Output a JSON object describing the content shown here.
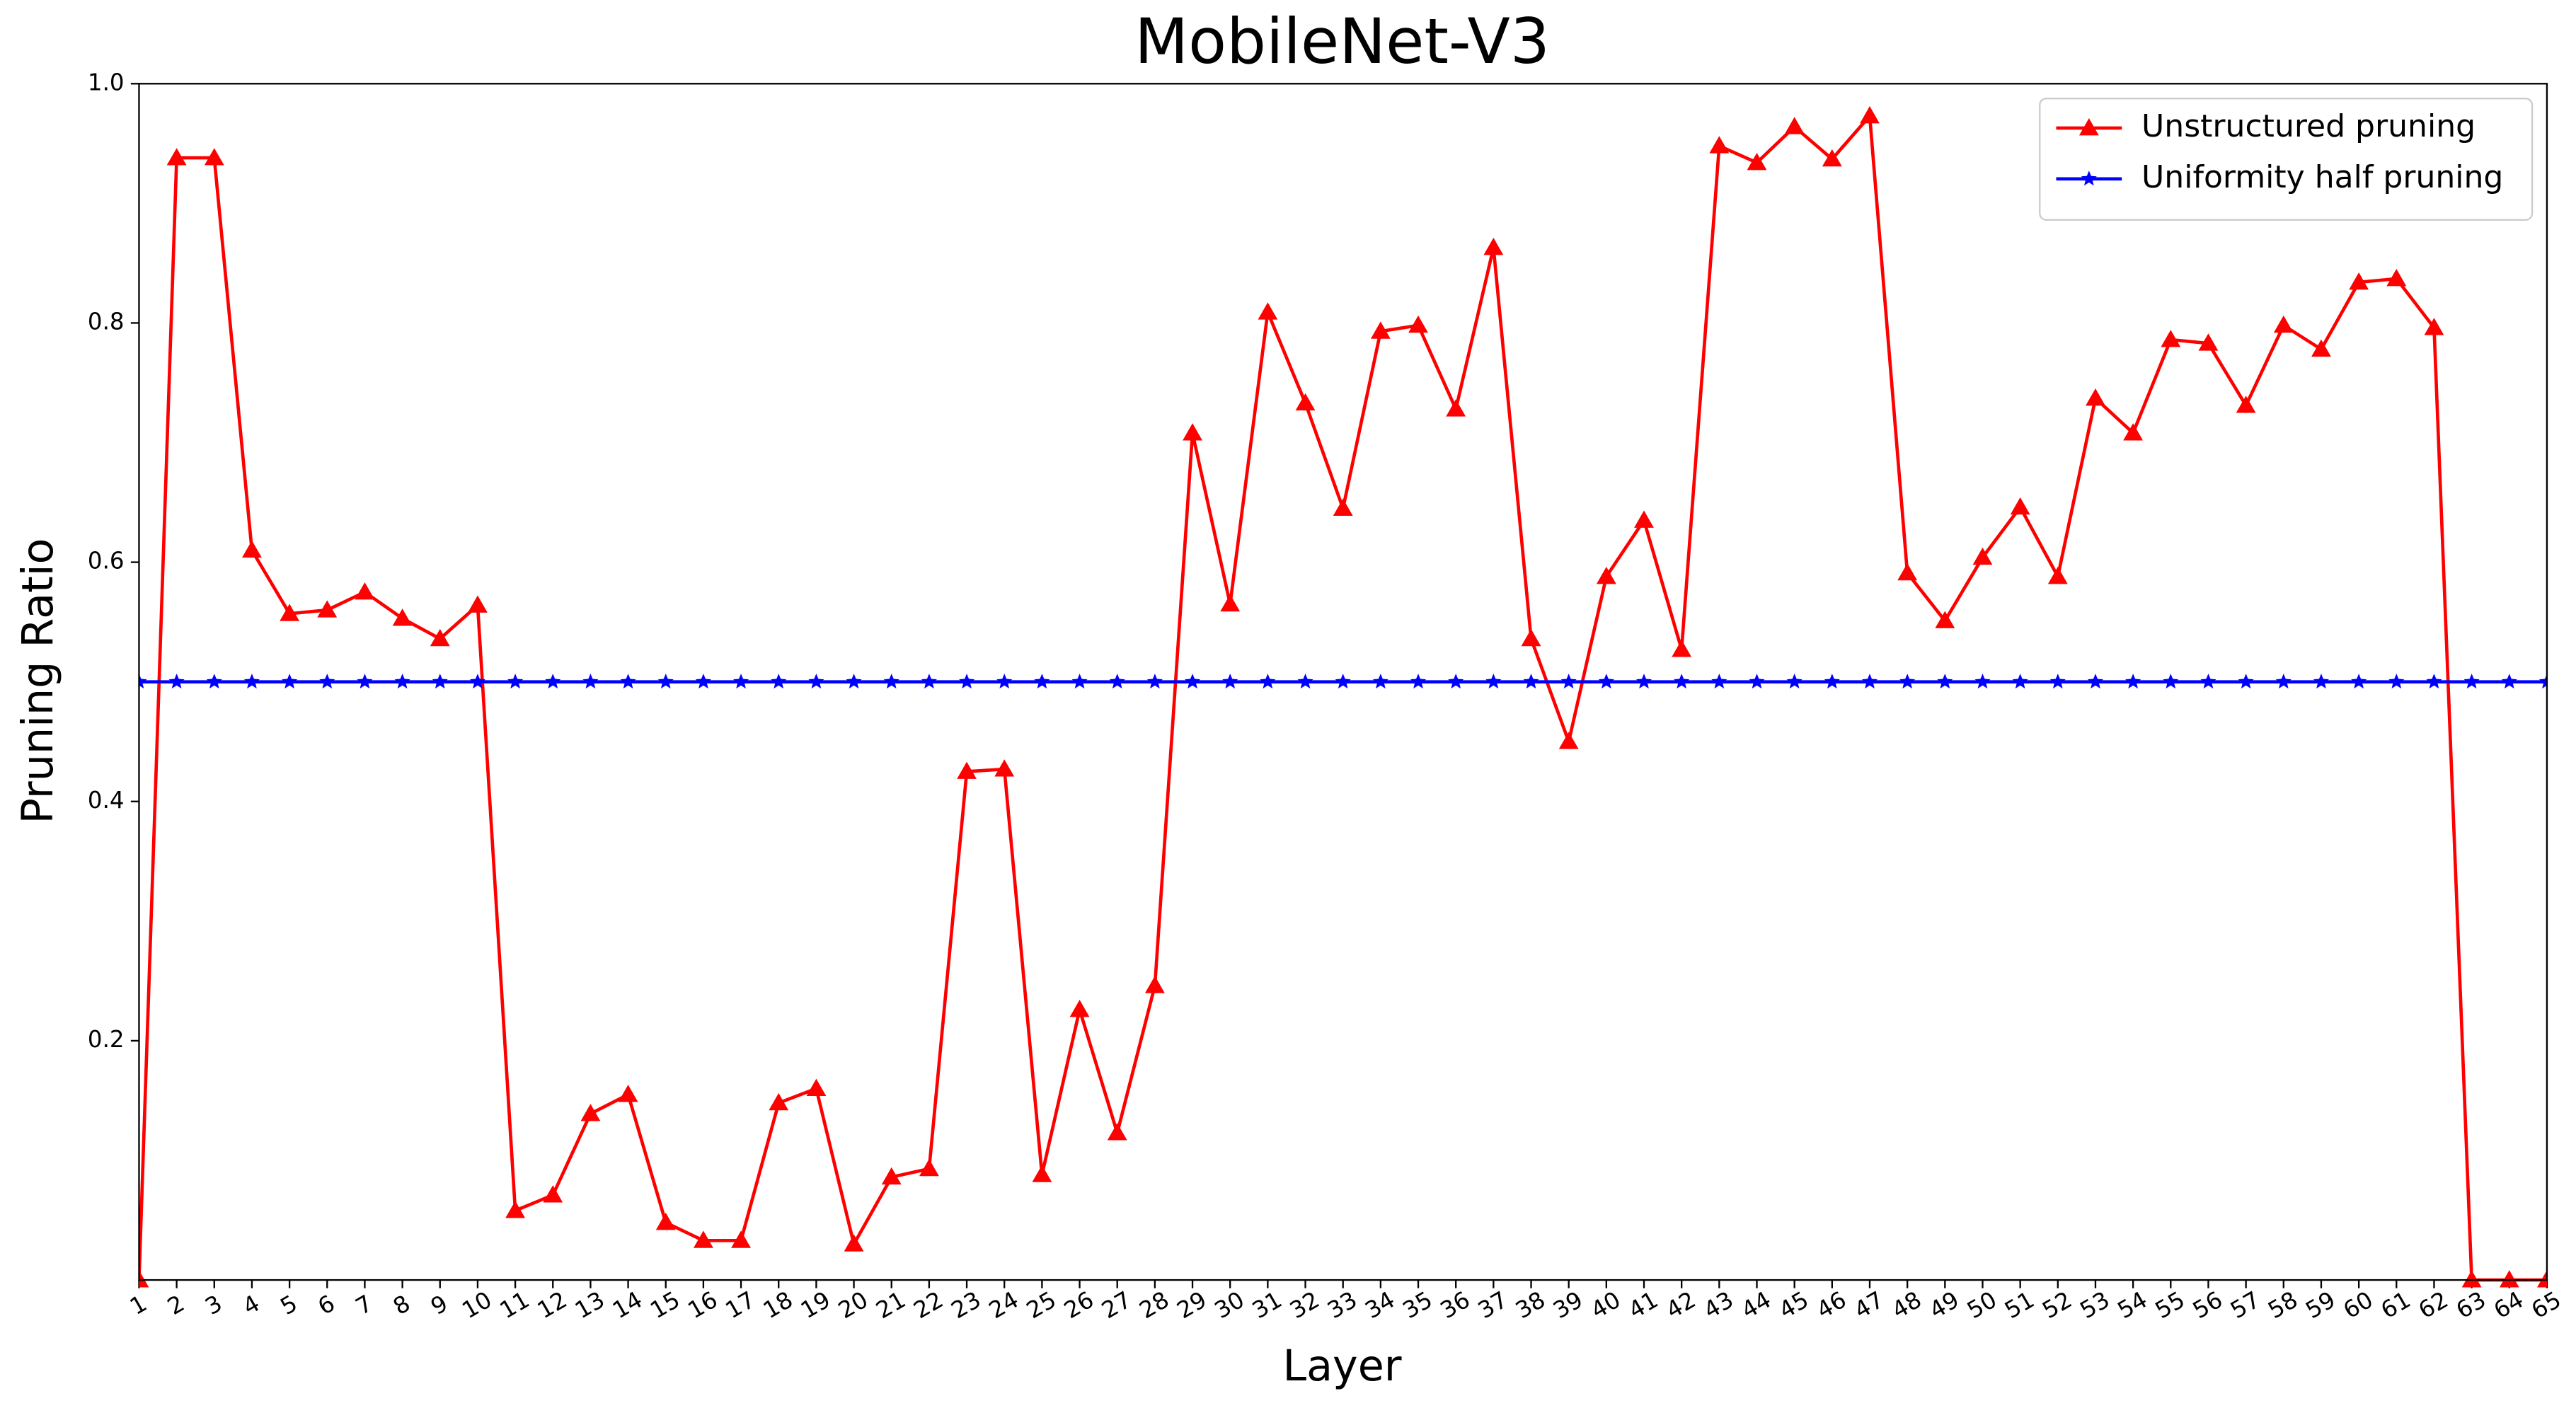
{
  "chart_data": {
    "type": "line",
    "title": "MobileNet-V3",
    "xlabel": "Layer",
    "ylabel": "Pruning Ratio",
    "categories": [
      "1",
      "2",
      "3",
      "4",
      "5",
      "6",
      "7",
      "8",
      "9",
      "10",
      "11",
      "12",
      "13",
      "14",
      "15",
      "16",
      "17",
      "18",
      "19",
      "20",
      "21",
      "22",
      "23",
      "24",
      "25",
      "26",
      "27",
      "28",
      "29",
      "30",
      "31",
      "32",
      "33",
      "34",
      "35",
      "36",
      "37",
      "38",
      "39",
      "40",
      "41",
      "42",
      "43",
      "44",
      "45",
      "46",
      "47",
      "48",
      "49",
      "50",
      "51",
      "52",
      "53",
      "54",
      "55",
      "56",
      "57",
      "58",
      "59",
      "60",
      "61",
      "62",
      "63",
      "64",
      "65"
    ],
    "series": [
      {
        "name": "Unstructured pruning",
        "color": "#ff0000",
        "marker": "triangle",
        "values": [
          0,
          0.938,
          0.938,
          0.61,
          0.557,
          0.56,
          0.575,
          0.553,
          0.536,
          0.564,
          0.058,
          0.071,
          0.139,
          0.155,
          0.048,
          0.033,
          0.033,
          0.148,
          0.16,
          0.03,
          0.086,
          0.093,
          0.425,
          0.427,
          0.088,
          0.226,
          0.123,
          0.246,
          0.708,
          0.565,
          0.809,
          0.733,
          0.645,
          0.793,
          0.798,
          0.728,
          0.863,
          0.536,
          0.45,
          0.588,
          0.635,
          0.527,
          0.948,
          0.934,
          0.964,
          0.937,
          0.973,
          0.591,
          0.551,
          0.604,
          0.646,
          0.588,
          0.737,
          0.708,
          0.786,
          0.783,
          0.731,
          0.798,
          0.778,
          0.834,
          0.837,
          0.796,
          0,
          0,
          0
        ]
      },
      {
        "name": "Uniformity half pruning",
        "color": "#0000ff",
        "marker": "star",
        "values": [
          0.5,
          0.5,
          0.5,
          0.5,
          0.5,
          0.5,
          0.5,
          0.5,
          0.5,
          0.5,
          0.5,
          0.5,
          0.5,
          0.5,
          0.5,
          0.5,
          0.5,
          0.5,
          0.5,
          0.5,
          0.5,
          0.5,
          0.5,
          0.5,
          0.5,
          0.5,
          0.5,
          0.5,
          0.5,
          0.5,
          0.5,
          0.5,
          0.5,
          0.5,
          0.5,
          0.5,
          0.5,
          0.5,
          0.5,
          0.5,
          0.5,
          0.5,
          0.5,
          0.5,
          0.5,
          0.5,
          0.5,
          0.5,
          0.5,
          0.5,
          0.5,
          0.5,
          0.5,
          0.5,
          0.5,
          0.5,
          0.5,
          0.5,
          0.5,
          0.5,
          0.5,
          0.5,
          0.5,
          0.5,
          0.5
        ]
      }
    ],
    "ylim": [
      0,
      1
    ],
    "yticks": [
      0.2,
      0.4,
      0.6,
      0.8,
      {
        "value": 1,
        "label": "1.0"
      }
    ],
    "legend": "upper right",
    "grid": false
  }
}
